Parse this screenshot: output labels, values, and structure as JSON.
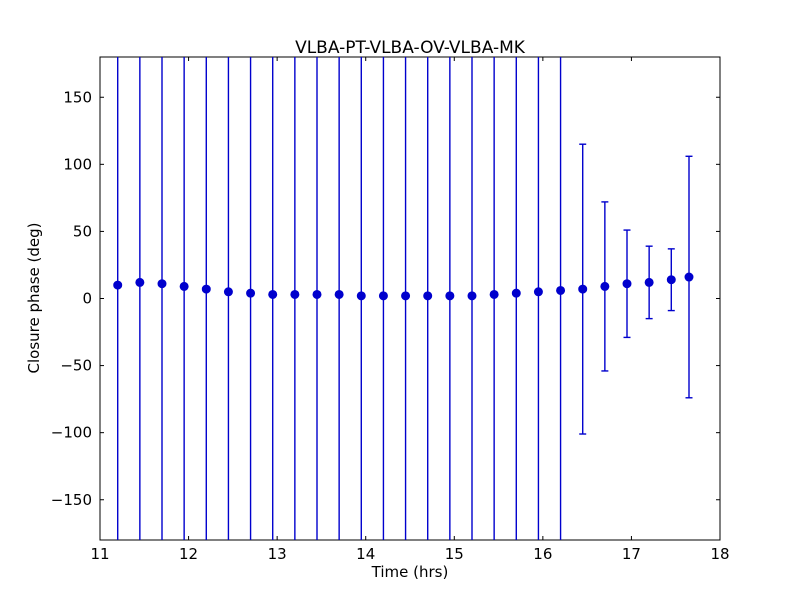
{
  "figure": {
    "background": "#ffffff",
    "frame_color": "#000000"
  },
  "chart_data": {
    "type": "scatter",
    "title": "VLBA-PT-VLBA-OV-VLBA-MK",
    "xlabel": "Time (hrs)",
    "ylabel": "Closure phase (deg)",
    "xlim": [
      11,
      18
    ],
    "ylim": [
      -180,
      180
    ],
    "xtick_values": [
      11,
      12,
      13,
      14,
      15,
      16,
      17,
      18
    ],
    "xtick_labels": [
      "11",
      "12",
      "13",
      "14",
      "15",
      "16",
      "17",
      "18"
    ],
    "ytick_values": [
      -150,
      -100,
      -50,
      0,
      50,
      100,
      150
    ],
    "ytick_labels": [
      "−150",
      "−100",
      "−50",
      "0",
      "50",
      "100",
      "150"
    ],
    "grid": false,
    "legend": "none",
    "marker": "circle",
    "marker_color": "#0000cd",
    "errorbar_color": "#0000cd",
    "series": [
      {
        "name": "closure-phase",
        "x": [
          11.2,
          11.45,
          11.7,
          11.95,
          12.2,
          12.45,
          12.7,
          12.95,
          13.2,
          13.45,
          13.7,
          13.95,
          14.2,
          14.45,
          14.7,
          14.95,
          15.2,
          15.45,
          15.7,
          15.95,
          16.2,
          16.45,
          16.7,
          16.95,
          17.2,
          17.45,
          17.65
        ],
        "y": [
          10,
          12,
          11,
          9,
          7,
          5,
          4,
          3,
          3,
          3,
          3,
          2,
          2,
          2,
          2,
          2,
          2,
          3,
          4,
          5,
          6,
          7,
          9,
          11,
          12,
          14,
          16
        ],
        "yerr": [
          200,
          200,
          200,
          200,
          200,
          200,
          200,
          200,
          200,
          200,
          200,
          200,
          200,
          200,
          200,
          200,
          200,
          200,
          200,
          200,
          200,
          108,
          63,
          40,
          27,
          23,
          90
        ],
        "yerr_note": "values of 200 indicate error bars clipped at the axes limits (extend beyond plot)"
      }
    ]
  }
}
